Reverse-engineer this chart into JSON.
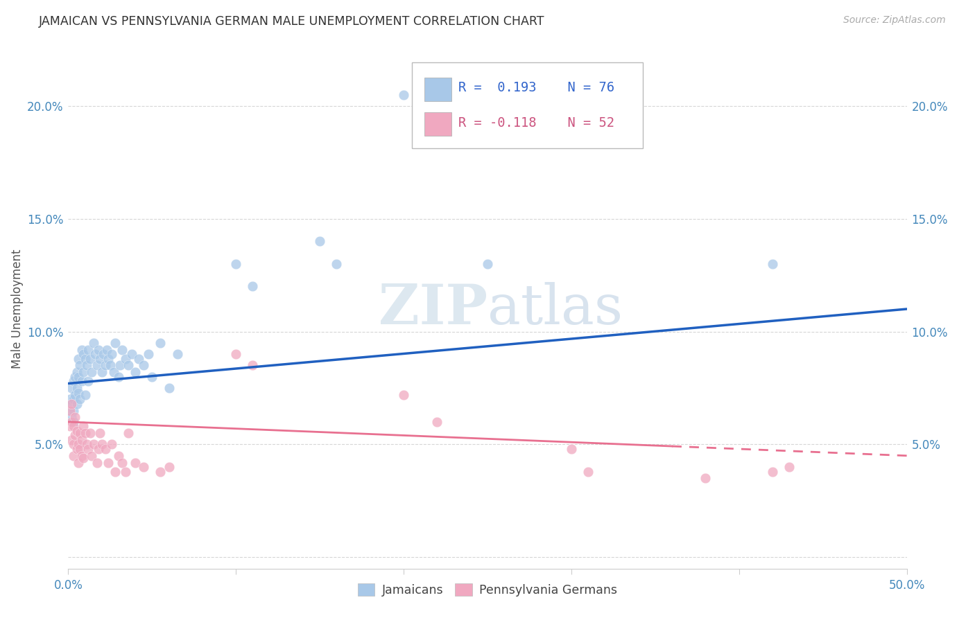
{
  "title": "JAMAICAN VS PENNSYLVANIA GERMAN MALE UNEMPLOYMENT CORRELATION CHART",
  "source": "Source: ZipAtlas.com",
  "ylabel": "Male Unemployment",
  "watermark_zip": "ZIP",
  "watermark_atlas": "atlas",
  "xlim": [
    0.0,
    0.5
  ],
  "ylim": [
    -0.005,
    0.225
  ],
  "xticks": [
    0.0,
    0.1,
    0.2,
    0.3,
    0.4,
    0.5
  ],
  "xtick_labels": [
    "0.0%",
    "",
    "",
    "",
    "",
    "50.0%"
  ],
  "yticks": [
    0.0,
    0.05,
    0.1,
    0.15,
    0.2
  ],
  "ytick_labels": [
    "",
    "5.0%",
    "10.0%",
    "15.0%",
    "20.0%"
  ],
  "legend_r1": "R =  0.193",
  "legend_n1": "N = 76",
  "legend_r2": "R = -0.118",
  "legend_n2": "N = 52",
  "color_jamaican": "#a8c8e8",
  "color_pa_german": "#f0a8c0",
  "color_line_jamaican": "#2060c0",
  "color_line_pa_german": "#e87090",
  "jamaican_x": [
    0.001,
    0.001,
    0.002,
    0.002,
    0.002,
    0.003,
    0.003,
    0.003,
    0.003,
    0.004,
    0.004,
    0.005,
    0.005,
    0.005,
    0.006,
    0.006,
    0.006,
    0.007,
    0.007,
    0.008,
    0.008,
    0.009,
    0.009,
    0.01,
    0.01,
    0.011,
    0.012,
    0.012,
    0.013,
    0.014,
    0.015,
    0.016,
    0.017,
    0.018,
    0.019,
    0.02,
    0.021,
    0.022,
    0.023,
    0.024,
    0.025,
    0.026,
    0.027,
    0.028,
    0.03,
    0.031,
    0.032,
    0.034,
    0.036,
    0.038,
    0.04,
    0.042,
    0.045,
    0.048,
    0.05,
    0.055,
    0.06,
    0.065,
    0.1,
    0.11,
    0.15,
    0.16,
    0.2,
    0.25,
    0.42
  ],
  "jamaican_y": [
    0.065,
    0.07,
    0.062,
    0.068,
    0.075,
    0.06,
    0.065,
    0.07,
    0.078,
    0.072,
    0.08,
    0.068,
    0.075,
    0.082,
    0.073,
    0.08,
    0.088,
    0.07,
    0.085,
    0.078,
    0.092,
    0.082,
    0.09,
    0.072,
    0.088,
    0.085,
    0.078,
    0.092,
    0.088,
    0.082,
    0.095,
    0.09,
    0.085,
    0.092,
    0.088,
    0.082,
    0.09,
    0.085,
    0.092,
    0.088,
    0.085,
    0.09,
    0.082,
    0.095,
    0.08,
    0.085,
    0.092,
    0.088,
    0.085,
    0.09,
    0.082,
    0.088,
    0.085,
    0.09,
    0.08,
    0.095,
    0.075,
    0.09,
    0.13,
    0.12,
    0.14,
    0.13,
    0.205,
    0.13,
    0.13
  ],
  "pa_german_x": [
    0.001,
    0.001,
    0.002,
    0.002,
    0.002,
    0.003,
    0.003,
    0.003,
    0.004,
    0.004,
    0.005,
    0.005,
    0.006,
    0.006,
    0.007,
    0.007,
    0.008,
    0.008,
    0.009,
    0.009,
    0.01,
    0.011,
    0.012,
    0.013,
    0.014,
    0.015,
    0.017,
    0.018,
    0.019,
    0.02,
    0.022,
    0.024,
    0.026,
    0.028,
    0.03,
    0.032,
    0.034,
    0.036,
    0.04,
    0.045,
    0.055,
    0.06,
    0.1,
    0.11,
    0.2,
    0.22,
    0.3,
    0.31,
    0.38,
    0.42,
    0.43
  ],
  "pa_german_y": [
    0.058,
    0.065,
    0.052,
    0.06,
    0.068,
    0.05,
    0.058,
    0.045,
    0.054,
    0.062,
    0.048,
    0.056,
    0.042,
    0.05,
    0.055,
    0.048,
    0.052,
    0.045,
    0.058,
    0.044,
    0.055,
    0.05,
    0.048,
    0.055,
    0.045,
    0.05,
    0.042,
    0.048,
    0.055,
    0.05,
    0.048,
    0.042,
    0.05,
    0.038,
    0.045,
    0.042,
    0.038,
    0.055,
    0.042,
    0.04,
    0.038,
    0.04,
    0.09,
    0.085,
    0.072,
    0.06,
    0.048,
    0.038,
    0.035,
    0.038,
    0.04
  ],
  "jamaican_trend_x": [
    0.0,
    0.5
  ],
  "jamaican_trend_y": [
    0.077,
    0.11
  ],
  "pa_german_trend_x": [
    0.0,
    0.5
  ],
  "pa_german_trend_y": [
    0.06,
    0.045
  ]
}
